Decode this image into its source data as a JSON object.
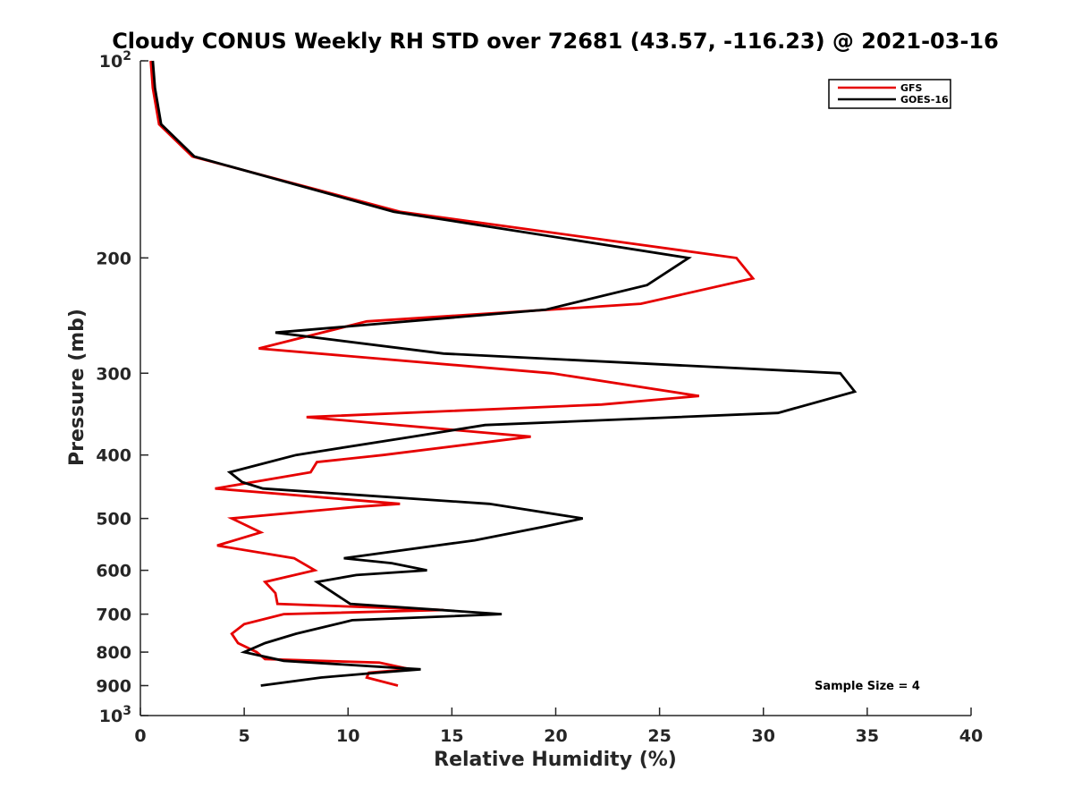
{
  "chart_data": {
    "type": "line",
    "title": "Cloudy CONUS Weekly RH STD over 72681 (43.57, -116.23) @ 2021-03-16",
    "xlabel": "Relative Humidity (%)",
    "ylabel": "Pressure (mb)",
    "xlim": [
      0,
      40
    ],
    "ylim": [
      100,
      1000
    ],
    "y_scale": "log",
    "y_reversed": true,
    "grid": false,
    "legend_position": "top-right",
    "x_ticks": [
      0,
      5,
      10,
      15,
      20,
      25,
      30,
      35,
      40
    ],
    "y_ticks": [
      {
        "value": 100,
        "base": "10",
        "exp": "2"
      },
      {
        "value": 200,
        "label": "200"
      },
      {
        "value": 300,
        "label": "300"
      },
      {
        "value": 400,
        "label": "400"
      },
      {
        "value": 500,
        "label": "500"
      },
      {
        "value": 600,
        "label": "600"
      },
      {
        "value": 700,
        "label": "700"
      },
      {
        "value": 800,
        "label": "800"
      },
      {
        "value": 900,
        "label": "900"
      },
      {
        "value": 1000,
        "base": "10",
        "exp": "3"
      }
    ],
    "series": [
      {
        "name": "GFS",
        "color": "#e60000",
        "points": [
          [
            12.4,
            900
          ],
          [
            10.9,
            875
          ],
          [
            11.0,
            860
          ],
          [
            13.0,
            850
          ],
          [
            11.5,
            830
          ],
          [
            6.0,
            820
          ],
          [
            5.6,
            800
          ],
          [
            4.7,
            775
          ],
          [
            4.4,
            750
          ],
          [
            5.0,
            725
          ],
          [
            6.9,
            700
          ],
          [
            14.6,
            690
          ],
          [
            6.6,
            675
          ],
          [
            6.5,
            650
          ],
          [
            6.0,
            625
          ],
          [
            8.4,
            600
          ],
          [
            7.4,
            575
          ],
          [
            3.7,
            550
          ],
          [
            5.8,
            525
          ],
          [
            4.4,
            500
          ],
          [
            10.4,
            480
          ],
          [
            12.5,
            475
          ],
          [
            3.6,
            450
          ],
          [
            8.2,
            425
          ],
          [
            8.5,
            410
          ],
          [
            11.7,
            400
          ],
          [
            18.8,
            375
          ],
          [
            8.0,
            350
          ],
          [
            22.2,
            335
          ],
          [
            26.9,
            325
          ],
          [
            19.8,
            300
          ],
          [
            5.7,
            275
          ],
          [
            10.9,
            250
          ],
          [
            24.1,
            235
          ],
          [
            29.5,
            215
          ],
          [
            28.7,
            200
          ],
          [
            12.5,
            170
          ],
          [
            2.5,
            140
          ],
          [
            0.9,
            125
          ],
          [
            0.6,
            110
          ],
          [
            0.5,
            100
          ]
        ]
      },
      {
        "name": "GOES-16",
        "color": "#000000",
        "points": [
          [
            5.8,
            900
          ],
          [
            8.7,
            875
          ],
          [
            11.4,
            860
          ],
          [
            13.5,
            850
          ],
          [
            6.9,
            825
          ],
          [
            5.0,
            800
          ],
          [
            6.0,
            775
          ],
          [
            7.5,
            750
          ],
          [
            10.2,
            715
          ],
          [
            17.4,
            700
          ],
          [
            10.1,
            675
          ],
          [
            8.5,
            625
          ],
          [
            10.4,
            610
          ],
          [
            13.8,
            600
          ],
          [
            12.1,
            585
          ],
          [
            9.8,
            575
          ],
          [
            16.1,
            540
          ],
          [
            19.4,
            515
          ],
          [
            21.3,
            500
          ],
          [
            16.8,
            475
          ],
          [
            5.9,
            450
          ],
          [
            4.9,
            440
          ],
          [
            4.3,
            425
          ],
          [
            7.5,
            400
          ],
          [
            13.1,
            375
          ],
          [
            16.6,
            360
          ],
          [
            30.7,
            345
          ],
          [
            34.4,
            320
          ],
          [
            33.7,
            300
          ],
          [
            14.6,
            280
          ],
          [
            6.5,
            260
          ],
          [
            19.5,
            240
          ],
          [
            24.4,
            220
          ],
          [
            26.4,
            200
          ],
          [
            12.2,
            170
          ],
          [
            2.6,
            140
          ],
          [
            1.0,
            125
          ],
          [
            0.7,
            110
          ],
          [
            0.6,
            100
          ]
        ]
      }
    ],
    "annotation": "Sample Size = 4"
  }
}
